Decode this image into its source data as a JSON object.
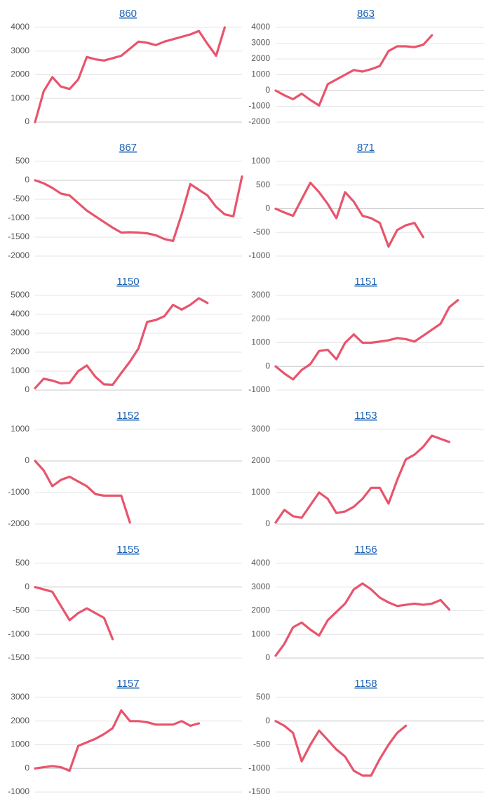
{
  "chart_data": [
    {
      "type": "line",
      "title": "860",
      "color": "#e8546c",
      "grid": true,
      "ylim": [
        0,
        4000
      ],
      "yticks": [
        0,
        1000,
        2000,
        3000,
        4000
      ],
      "values": [
        0,
        1300,
        1900,
        1500,
        1400,
        1800,
        2750,
        2650,
        2600,
        2700,
        2800,
        3100,
        3400,
        3350,
        3250,
        3400,
        3500,
        3600,
        3700,
        3850,
        3300,
        2800,
        4000,
        null,
        null
      ]
    },
    {
      "type": "line",
      "title": "863",
      "color": "#e8546c",
      "grid": true,
      "ylim": [
        -2000,
        4000
      ],
      "yticks": [
        -2000,
        -1000,
        0,
        1000,
        2000,
        3000,
        4000
      ],
      "values": [
        0,
        -300,
        -550,
        -200,
        -600,
        -950,
        400,
        700,
        1000,
        1300,
        1200,
        1350,
        1550,
        2500,
        2800,
        2800,
        2750,
        2900,
        3500,
        null,
        null,
        null,
        null,
        null,
        null
      ]
    },
    {
      "type": "line",
      "title": "867",
      "color": "#e8546c",
      "grid": true,
      "ylim": [
        -2000,
        500
      ],
      "yticks": [
        -2000,
        -1500,
        -1000,
        -500,
        0,
        500
      ],
      "values": [
        0,
        -80,
        -200,
        -350,
        -400,
        -600,
        -800,
        -950,
        -1100,
        -1250,
        -1380,
        -1370,
        -1380,
        -1400,
        -1450,
        -1550,
        -1600,
        -900,
        -100,
        -250,
        -400,
        -700,
        -900,
        -950,
        100
      ]
    },
    {
      "type": "line",
      "title": "871",
      "color": "#e8546c",
      "grid": true,
      "ylim": [
        -1000,
        1000
      ],
      "yticks": [
        -1000,
        -500,
        0,
        500,
        1000
      ],
      "values": [
        0,
        -80,
        -150,
        200,
        550,
        350,
        100,
        -200,
        350,
        150,
        -150,
        -200,
        -300,
        -800,
        -450,
        -350,
        -300,
        -600,
        null,
        null,
        null,
        null,
        null,
        null,
        null
      ]
    },
    {
      "type": "line",
      "title": "1150",
      "color": "#e8546c",
      "grid": true,
      "ylim": [
        0,
        5000
      ],
      "yticks": [
        0,
        1000,
        2000,
        3000,
        4000,
        5000
      ],
      "values": [
        100,
        600,
        500,
        350,
        380,
        1000,
        1300,
        700,
        300,
        280,
        900,
        1500,
        2200,
        3600,
        3700,
        3900,
        4500,
        4250,
        4500,
        4850,
        4600,
        null,
        null,
        null,
        null
      ]
    },
    {
      "type": "line",
      "title": "1151",
      "color": "#e8546c",
      "grid": true,
      "ylim": [
        -1000,
        3000
      ],
      "yticks": [
        -1000,
        0,
        1000,
        2000,
        3000
      ],
      "values": [
        0,
        -300,
        -550,
        -150,
        100,
        650,
        700,
        300,
        1000,
        1350,
        1000,
        1000,
        1050,
        1100,
        1200,
        1150,
        1050,
        1300,
        1550,
        1800,
        2500,
        2800,
        null,
        null,
        null
      ]
    },
    {
      "type": "line",
      "title": "1152",
      "color": "#e8546c",
      "grid": true,
      "ylim": [
        -2000,
        1000
      ],
      "yticks": [
        -2000,
        -1000,
        0,
        1000
      ],
      "values": [
        0,
        -300,
        -800,
        -600,
        -500,
        -650,
        -800,
        -1050,
        -1100,
        -1100,
        -1100,
        -1950,
        null,
        null,
        null,
        null,
        null,
        null,
        null,
        null,
        null,
        null,
        null,
        null,
        null
      ]
    },
    {
      "type": "line",
      "title": "1153",
      "color": "#e8546c",
      "grid": true,
      "ylim": [
        0,
        3000
      ],
      "yticks": [
        0,
        1000,
        2000,
        3000
      ],
      "values": [
        50,
        450,
        250,
        200,
        600,
        1000,
        800,
        350,
        400,
        550,
        800,
        1150,
        1150,
        650,
        1400,
        2050,
        2200,
        2450,
        2800,
        2700,
        2600,
        null,
        null,
        null,
        null
      ]
    },
    {
      "type": "line",
      "title": "1155",
      "color": "#e8546c",
      "grid": true,
      "ylim": [
        -1500,
        500
      ],
      "yticks": [
        -1500,
        -1000,
        -500,
        0,
        500
      ],
      "values": [
        0,
        -50,
        -100,
        -400,
        -700,
        -550,
        -450,
        -550,
        -650,
        -1100,
        null,
        null,
        null,
        null,
        null,
        null,
        null,
        null,
        null,
        null,
        null,
        null,
        null,
        null,
        null
      ]
    },
    {
      "type": "line",
      "title": "1156",
      "color": "#e8546c",
      "grid": true,
      "ylim": [
        0,
        4000
      ],
      "yticks": [
        0,
        1000,
        2000,
        3000,
        4000
      ],
      "values": [
        100,
        600,
        1300,
        1500,
        1200,
        950,
        1600,
        1950,
        2300,
        2900,
        3150,
        2900,
        2550,
        2350,
        2200,
        2250,
        2300,
        2250,
        2300,
        2450,
        2050,
        null,
        null,
        null,
        null
      ]
    },
    {
      "type": "line",
      "title": "1157",
      "color": "#e8546c",
      "grid": true,
      "ylim": [
        -1000,
        3000
      ],
      "yticks": [
        -1000,
        0,
        1000,
        2000,
        3000
      ],
      "values": [
        0,
        50,
        100,
        50,
        -100,
        950,
        1100,
        1250,
        1450,
        1700,
        2450,
        2000,
        2000,
        1950,
        1850,
        1850,
        1850,
        2000,
        1800,
        1900,
        null,
        null,
        null,
        null,
        null
      ]
    },
    {
      "type": "line",
      "title": "1158",
      "color": "#e8546c",
      "grid": true,
      "ylim": [
        -1500,
        500
      ],
      "yticks": [
        -1500,
        -1000,
        -500,
        0,
        500
      ],
      "values": [
        0,
        -100,
        -250,
        -850,
        -500,
        -200,
        -400,
        -600,
        -750,
        -1050,
        -1150,
        -1150,
        -800,
        -500,
        -250,
        -100,
        null,
        null,
        null,
        null,
        null,
        null,
        null,
        null,
        null
      ]
    }
  ]
}
